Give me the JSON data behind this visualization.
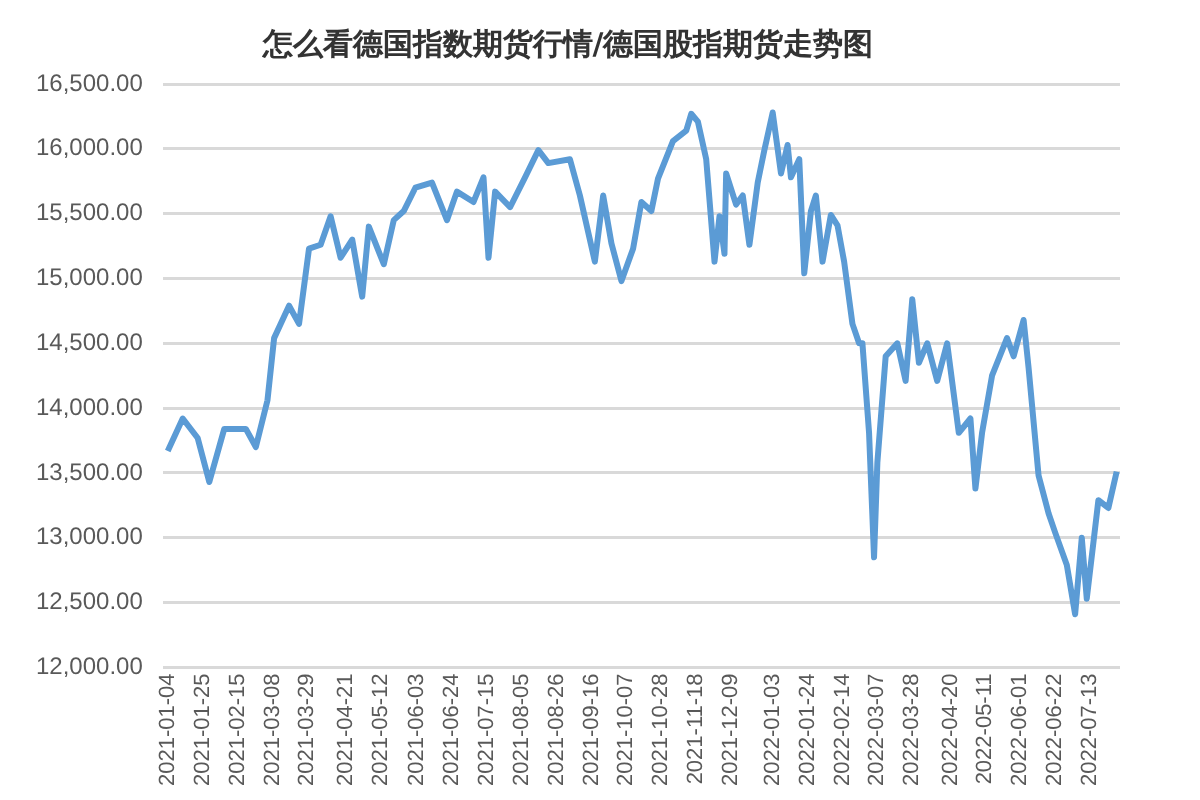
{
  "chart_data": {
    "type": "line",
    "title": "怎么看德国指数期货行情/德国股指期货走势图",
    "x": [
      "2021-01-04",
      "2021-01-13",
      "2021-01-22",
      "2021-01-29",
      "2021-02-07",
      "2021-02-20",
      "2021-02-26",
      "2021-03-05",
      "2021-03-09",
      "2021-03-18",
      "2021-03-24",
      "2021-03-30",
      "2021-04-06",
      "2021-04-12",
      "2021-04-18",
      "2021-04-25",
      "2021-05-01",
      "2021-05-05",
      "2021-05-14",
      "2021-05-20",
      "2021-05-26",
      "2021-06-02",
      "2021-06-12",
      "2021-06-21",
      "2021-06-27",
      "2021-07-07",
      "2021-07-13",
      "2021-07-16",
      "2021-07-20",
      "2021-07-29",
      "2021-08-07",
      "2021-08-15",
      "2021-08-21",
      "2021-09-03",
      "2021-09-09",
      "2021-09-18",
      "2021-09-23",
      "2021-09-28",
      "2021-10-04",
      "2021-10-11",
      "2021-10-16",
      "2021-10-22",
      "2021-10-26",
      "2021-11-04",
      "2021-11-12",
      "2021-11-15",
      "2021-11-19",
      "2021-11-24",
      "2021-11-29",
      "2021-12-02",
      "2021-12-05",
      "2021-12-06",
      "2021-12-12",
      "2021-12-16",
      "2021-12-20",
      "2021-12-25",
      "2021-12-29",
      "2022-01-03",
      "2022-01-08",
      "2022-01-12",
      "2022-01-14",
      "2022-01-19",
      "2022-01-22",
      "2022-01-26",
      "2022-01-29",
      "2022-02-02",
      "2022-02-07",
      "2022-02-11",
      "2022-02-15",
      "2022-02-20",
      "2022-02-24",
      "2022-02-26",
      "2022-03-02",
      "2022-03-05",
      "2022-03-07",
      "2022-03-12",
      "2022-03-19",
      "2022-03-24",
      "2022-03-28",
      "2022-04-01",
      "2022-04-06",
      "2022-04-12",
      "2022-04-18",
      "2022-04-25",
      "2022-05-02",
      "2022-05-05",
      "2022-05-09",
      "2022-05-15",
      "2022-05-24",
      "2022-05-28",
      "2022-06-03",
      "2022-06-06",
      "2022-06-12",
      "2022-06-18",
      "2022-06-22",
      "2022-06-29",
      "2022-07-04",
      "2022-07-08",
      "2022-07-11",
      "2022-07-18",
      "2022-07-24",
      "2022-07-29"
    ],
    "series": [
      {
        "color": "#5b9bd5",
        "values": [
          13670,
          13920,
          13770,
          13430,
          13840,
          13840,
          13700,
          14060,
          14540,
          14790,
          14650,
          15230,
          15260,
          15480,
          15160,
          15300,
          14860,
          15400,
          15110,
          15450,
          15520,
          15700,
          15740,
          15450,
          15670,
          15590,
          15780,
          15160,
          15670,
          15550,
          15780,
          15990,
          15890,
          15920,
          15640,
          15130,
          15640,
          15270,
          14980,
          15230,
          15590,
          15520,
          15770,
          16060,
          16140,
          16270,
          16210,
          15920,
          15130,
          15480,
          15190,
          15810,
          15570,
          15640,
          15260,
          15740,
          15990,
          16280,
          15810,
          16030,
          15780,
          15920,
          15040,
          15520,
          15640,
          15130,
          15490,
          15410,
          15130,
          14650,
          14500,
          14500,
          13810,
          12850,
          13580,
          14400,
          14500,
          14210,
          14840,
          14350,
          14500,
          14210,
          14500,
          13810,
          13920,
          13380,
          13810,
          14250,
          14540,
          14400,
          14680,
          14310,
          13480,
          13190,
          13040,
          12790,
          12410,
          13000,
          12530,
          13290,
          13230,
          13510
        ]
      }
    ],
    "xlim": [
      "2021-01-01",
      "2022-07-31"
    ],
    "xticks": [
      "2021-01-04",
      "2021-01-25",
      "2021-02-15",
      "2021-03-08",
      "2021-03-29",
      "2021-04-21",
      "2021-05-12",
      "2021-06-03",
      "2021-06-24",
      "2021-07-15",
      "2021-08-05",
      "2021-08-26",
      "2021-09-16",
      "2021-10-07",
      "2021-10-28",
      "2021-11-18",
      "2021-12-09",
      "2022-01-03",
      "2022-01-24",
      "2022-02-14",
      "2022-03-07",
      "2022-03-28",
      "2022-04-20",
      "2022-05-11",
      "2022-06-01",
      "2022-06-22",
      "2022-07-13"
    ],
    "ylim": [
      12000,
      16500
    ],
    "yticks": [
      {
        "value": 12000,
        "label": "12,000.00"
      },
      {
        "value": 12500,
        "label": "12,500.00"
      },
      {
        "value": 13000,
        "label": "13,000.00"
      },
      {
        "value": 13500,
        "label": "13,500.00"
      },
      {
        "value": 14000,
        "label": "14,000.00"
      },
      {
        "value": 14500,
        "label": "14,500.00"
      },
      {
        "value": 15000,
        "label": "15,000.00"
      },
      {
        "value": 15500,
        "label": "15,500.00"
      },
      {
        "value": 16000,
        "label": "16,000.00"
      },
      {
        "value": 16500,
        "label": "16,500.00"
      }
    ],
    "grid": "y",
    "legend": false,
    "marker": "none",
    "line_style": "solid"
  }
}
